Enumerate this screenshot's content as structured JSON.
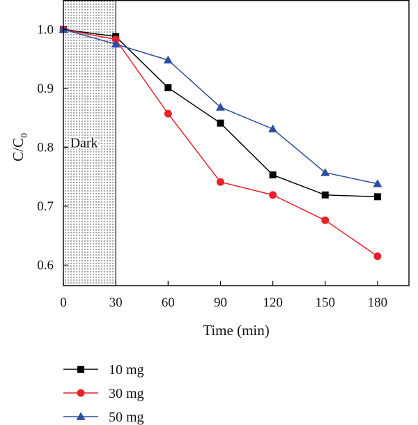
{
  "chart_data": {
    "type": "line",
    "title": "",
    "xlabel": "Time (min)",
    "ylabel": {
      "main": "C/C",
      "subscript": "0"
    },
    "xlim": [
      0,
      198
    ],
    "ylim": [
      0.565,
      1.05
    ],
    "xticks": [
      0,
      30,
      60,
      90,
      120,
      150,
      180
    ],
    "yticks": [
      0.6,
      0.7,
      0.8,
      0.9,
      1.0
    ],
    "ytick_labels": [
      "0.6",
      "0.7",
      "0.8",
      "0.9",
      "1.0"
    ],
    "grid": false,
    "legend_position": "bottom-left, below plot",
    "shaded_region": {
      "label": "Dark",
      "x_range": [
        0,
        30
      ],
      "pattern": "dotted"
    },
    "series": [
      {
        "name": "10 mg",
        "color": "#000000",
        "marker": "square",
        "x": [
          0,
          30,
          60,
          90,
          120,
          150,
          180
        ],
        "y": [
          1.0,
          0.988,
          0.901,
          0.841,
          0.753,
          0.719,
          0.716
        ]
      },
      {
        "name": "30 mg",
        "color": "#e8212a",
        "marker": "circle",
        "x": [
          0,
          30,
          60,
          90,
          120,
          150,
          180
        ],
        "y": [
          1.0,
          0.983,
          0.857,
          0.741,
          0.719,
          0.676,
          0.615
        ]
      },
      {
        "name": "50 mg",
        "color": "#2f4da0",
        "marker": "triangle",
        "x": [
          0,
          30,
          60,
          90,
          120,
          150,
          180
        ],
        "y": [
          1.0,
          0.975,
          0.948,
          0.868,
          0.831,
          0.757,
          0.738
        ]
      }
    ]
  }
}
